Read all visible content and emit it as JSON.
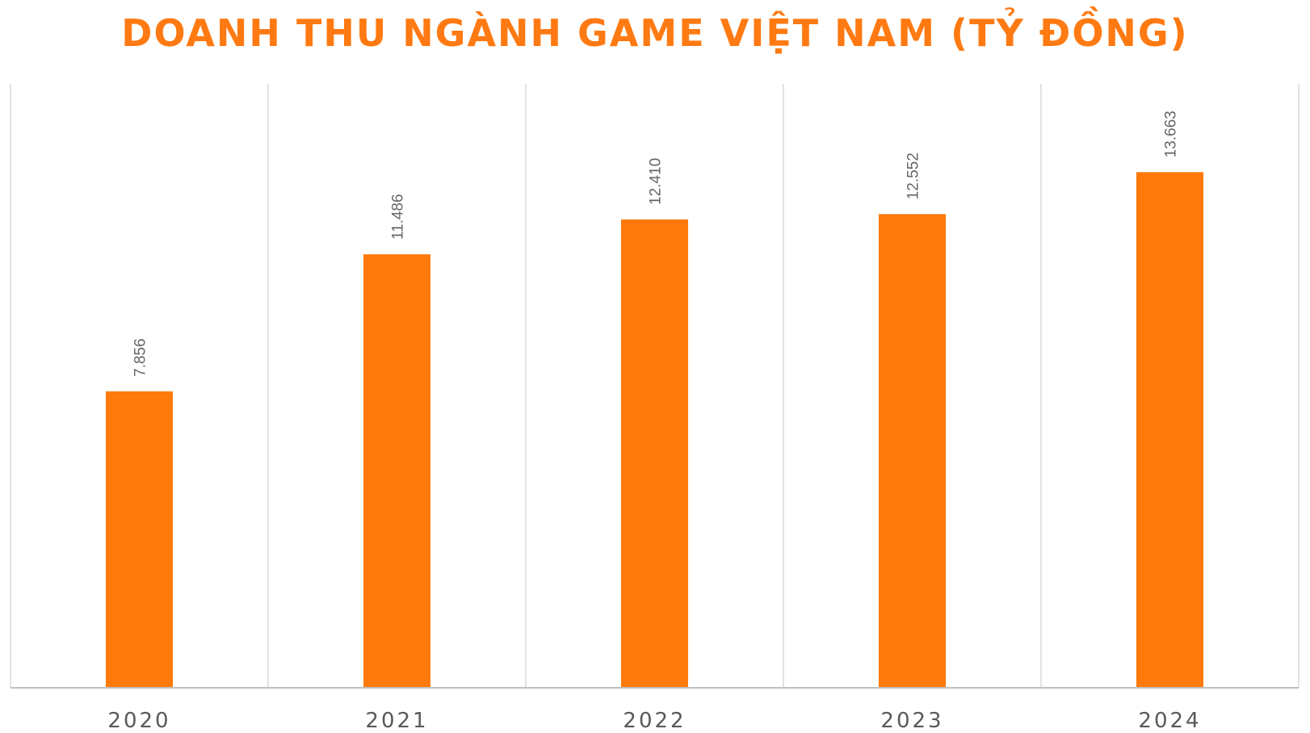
{
  "chart_data": {
    "type": "bar",
    "title": "DOANH THU NGÀNH GAME VIỆT NAM (TỶ ĐỒNG)",
    "xlabel": "",
    "ylabel": "",
    "categories": [
      "2020",
      "2021",
      "2022",
      "2023",
      "2024"
    ],
    "series": [
      {
        "values": [
          7856,
          11486,
          12410,
          12552,
          13663
        ],
        "labels": [
          "7.856",
          "11.486",
          "12.410",
          "12.552",
          "13.663"
        ]
      }
    ],
    "ylim": [
      0,
      16000
    ],
    "grid": "vertical category separators",
    "legend": "none",
    "bar_color": "#ff7a0a",
    "title_color": "#ff7a12",
    "label_color": "#666666",
    "tick_color": "#595959",
    "grid_color": "#d9d9d9",
    "axis_color": "#bfbfbf"
  }
}
